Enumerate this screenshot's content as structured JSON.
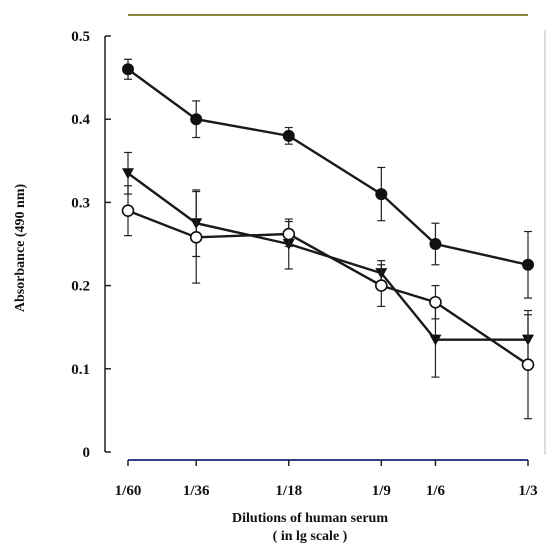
{
  "chart_data": {
    "type": "line",
    "xlabel": "Dilutions of human serum",
    "xlabel_sub": "( in lg scale )",
    "ylabel": "Absorbance (490 nm)",
    "x_scale": "log",
    "ylim": [
      0,
      0.5
    ],
    "y_ticks": [
      0,
      0.1,
      0.2,
      0.3,
      0.4,
      0.5
    ],
    "y_tick_labels": [
      "0",
      "0.1",
      "0.2",
      "0.3",
      "0.4",
      "0.5"
    ],
    "categories": [
      "1/60",
      "1/36",
      "1/18",
      "1/9",
      "1/6",
      "1/3"
    ],
    "x": [
      0.016667,
      0.027778,
      0.055556,
      0.111111,
      0.166667,
      0.333333
    ],
    "grid": false,
    "legend": "none",
    "series": [
      {
        "marker": "filled-circle",
        "values": [
          0.46,
          0.4,
          0.38,
          0.31,
          0.25,
          0.225
        ],
        "errors": [
          0.012,
          0.022,
          0.01,
          0.032,
          0.025,
          0.04
        ]
      },
      {
        "marker": "filled-triangle-down",
        "values": [
          0.335,
          0.275,
          0.25,
          0.215,
          0.135,
          0.135
        ],
        "errors": [
          0.025,
          0.04,
          0.03,
          0.015,
          0.045,
          0.03
        ]
      },
      {
        "marker": "open-circle",
        "values": [
          0.29,
          0.258,
          0.262,
          0.2,
          0.18,
          0.105
        ],
        "errors": [
          0.03,
          0.055,
          0.015,
          0.025,
          0.02,
          0.065
        ]
      }
    ]
  }
}
